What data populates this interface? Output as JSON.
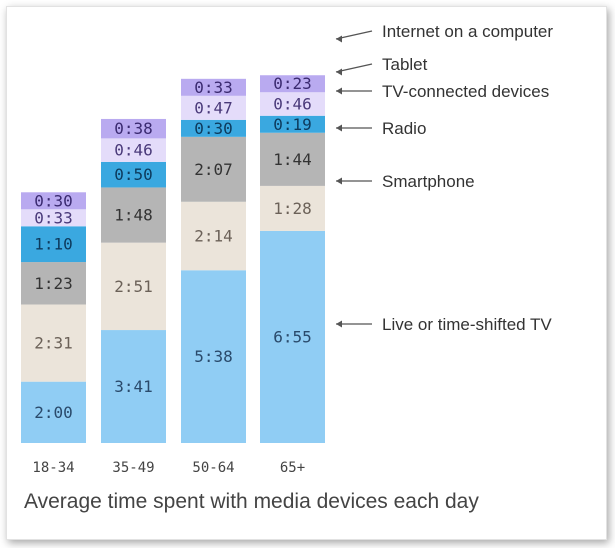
{
  "title": "Average time spent with media devices each day",
  "chart_data": {
    "type": "bar",
    "stacked": true,
    "categories": [
      "18-34",
      "35-49",
      "50-64",
      "65+"
    ],
    "series": [
      {
        "name": "Live or  time-shifted TV",
        "color": "#90cdf4",
        "text_color": "#2a4a6b",
        "values": [
          "2:00",
          "3:41",
          "5:38",
          "6:55"
        ]
      },
      {
        "name": "Smartphone",
        "color": "#ebe4da",
        "text_color": "#6b6158",
        "values": [
          "2:31",
          "2:51",
          "2:14",
          "1:28"
        ]
      },
      {
        "name": "Radio",
        "color": "#b5b5b5",
        "text_color": "#333333",
        "values": [
          "1:23",
          "1:48",
          "2:07",
          "1:44"
        ]
      },
      {
        "name": "TV-connected devices",
        "color": "#3aa8e0",
        "text_color": "#0d3a5c",
        "values": [
          "1:10",
          "0:50",
          "0:30",
          "0:19"
        ]
      },
      {
        "name": "Tablet",
        "color": "#e4dcfa",
        "text_color": "#4a3a7a",
        "values": [
          "0:33",
          "0:46",
          "0:47",
          "0:46"
        ]
      },
      {
        "name": "Internet on a computer",
        "color": "#b9aaf0",
        "text_color": "#3a2a70",
        "values": [
          "0:30",
          "0:38",
          "0:33",
          "0:23"
        ]
      }
    ],
    "ylim": [
      0,
      13.5
    ],
    "grid": false,
    "legend": "right"
  }
}
